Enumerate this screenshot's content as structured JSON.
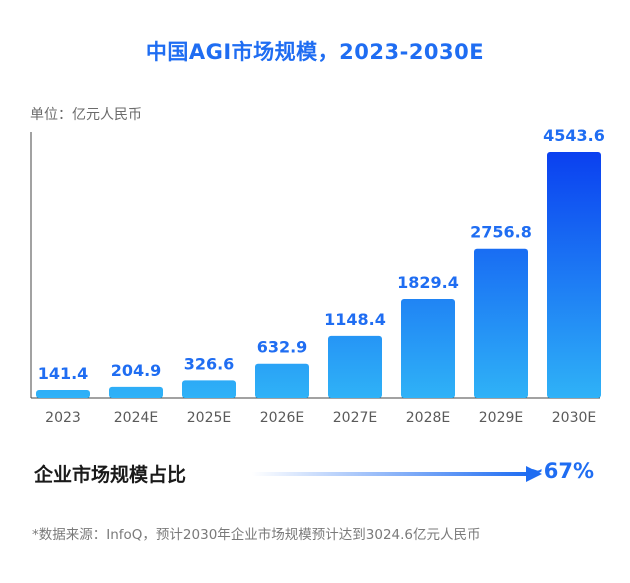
{
  "title": "中国AGI市场规模，2023-2030E",
  "unit_label": "单位：亿元人民币",
  "chart_data": {
    "type": "bar",
    "categories": [
      "2023",
      "2024E",
      "2025E",
      "2026E",
      "2027E",
      "2028E",
      "2029E",
      "2030E"
    ],
    "values": [
      141.4,
      204.9,
      326.6,
      632.9,
      1148.4,
      1829.4,
      2756.8,
      4543.6
    ],
    "value_labels": [
      "141.4",
      "204.9",
      "326.6",
      "632.9",
      "1148.4",
      "1829.4",
      "2756.8",
      "4543.6"
    ],
    "ylim": [
      0,
      4543.6
    ],
    "grid": false,
    "colors": {
      "bar_light": "#2fb2f7",
      "bar_dark": "#0a3ff0",
      "label": "#1f6df2"
    }
  },
  "enterprise_share": {
    "label": "企业市场规模占比",
    "value": "~67%"
  },
  "source_note": "*数据来源：InfoQ，预计2030年企业市场规模预计达到3024.6亿元人民币"
}
